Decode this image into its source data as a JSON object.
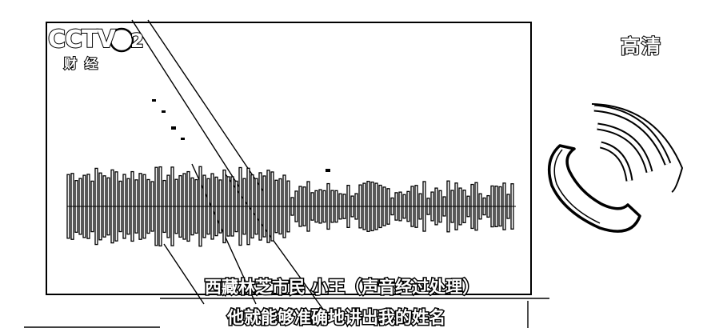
{
  "channel": {
    "logo_text": "CCTV",
    "channel_number": "2",
    "channel_name": "财经"
  },
  "quality_badge": "高清",
  "icons": {
    "phone": "phone-ringing-icon",
    "waveform": "audio-waveform-icon"
  },
  "captions": {
    "speaker": "西藏林芝市民 小王（声音经过处理）",
    "line": "他就能够准确地讲出我的姓名"
  }
}
